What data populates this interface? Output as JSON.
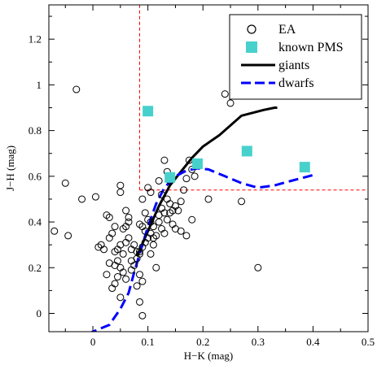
{
  "chart_data": {
    "type": "scatter",
    "title": "",
    "xlabel": "H−K (mag)",
    "ylabel": "J−H (mag)",
    "xlim": [
      -0.08,
      0.5
    ],
    "ylim": [
      -0.08,
      1.35
    ],
    "xticks": [
      0,
      0.1,
      0.2,
      0.3,
      0.4,
      0.5
    ],
    "xtick_labels": [
      "0",
      "0.1",
      "0.2",
      "0.3",
      "0.4",
      "0.5"
    ],
    "yticks": [
      0,
      0.2,
      0.4,
      0.6,
      0.8,
      1.0,
      1.2
    ],
    "ytick_labels": [
      "0",
      "0.2",
      "0.4",
      "0.6",
      "0.8",
      "1",
      "1.2"
    ],
    "grid": false,
    "legend_position": "top-right",
    "legend": [
      {
        "label": "EA",
        "marker": "open-circle"
      },
      {
        "label": "known PMS",
        "marker": "filled-square",
        "color": "#48d1cc"
      },
      {
        "label": "giants",
        "line": "solid",
        "color": "#000000"
      },
      {
        "label": "dwarfs",
        "line": "dashed",
        "color": "#0000ff"
      }
    ],
    "series": [
      {
        "name": "EA",
        "kind": "scatter",
        "marker": "open-circle",
        "points": [
          [
            -0.07,
            0.36
          ],
          [
            -0.05,
            0.57
          ],
          [
            -0.045,
            0.34
          ],
          [
            -0.03,
            0.98
          ],
          [
            -0.02,
            0.5
          ],
          [
            0.01,
            0.29
          ],
          [
            0.02,
            0.28
          ],
          [
            0.015,
            0.3
          ],
          [
            0.005,
            0.51
          ],
          [
            0.025,
            0.43
          ],
          [
            0.03,
            0.33
          ],
          [
            0.035,
            0.35
          ],
          [
            0.04,
            0.27
          ],
          [
            0.045,
            0.28
          ],
          [
            0.05,
            0.3
          ],
          [
            0.055,
            0.26
          ],
          [
            0.06,
            0.31
          ],
          [
            0.065,
            0.33
          ],
          [
            0.07,
            0.28
          ],
          [
            0.075,
            0.3
          ],
          [
            0.08,
            0.27
          ],
          [
            0.085,
            0.26
          ],
          [
            0.025,
            0.17
          ],
          [
            0.03,
            0.22
          ],
          [
            0.04,
            0.21
          ],
          [
            0.045,
            0.23
          ],
          [
            0.05,
            0.2
          ],
          [
            0.055,
            0.18
          ],
          [
            0.06,
            0.15
          ],
          [
            0.035,
            0.11
          ],
          [
            0.04,
            0.13
          ],
          [
            0.045,
            0.16
          ],
          [
            0.05,
            0.07
          ],
          [
            0.07,
            0.23
          ],
          [
            0.075,
            0.21
          ],
          [
            0.08,
            0.24
          ],
          [
            0.085,
            0.27
          ],
          [
            0.09,
            0.29
          ],
          [
            0.095,
            0.31
          ],
          [
            0.1,
            0.33
          ],
          [
            0.105,
            0.35
          ],
          [
            0.11,
            0.33
          ],
          [
            0.115,
            0.34
          ],
          [
            0.09,
            0.38
          ],
          [
            0.095,
            0.36
          ],
          [
            0.085,
            0.39
          ],
          [
            0.065,
            0.4
          ],
          [
            0.06,
            0.38
          ],
          [
            0.055,
            0.37
          ],
          [
            0.05,
            0.53
          ],
          [
            0.05,
            0.56
          ],
          [
            0.06,
            0.45
          ],
          [
            0.065,
            0.42
          ],
          [
            0.03,
            0.42
          ],
          [
            0.04,
            0.38
          ],
          [
            0.1,
            0.55
          ],
          [
            0.105,
            0.53
          ],
          [
            0.12,
            0.58
          ],
          [
            0.125,
            0.52
          ],
          [
            0.13,
            0.67
          ],
          [
            0.135,
            0.5
          ],
          [
            0.14,
            0.48
          ],
          [
            0.145,
            0.45
          ],
          [
            0.15,
            0.47
          ],
          [
            0.155,
            0.45
          ],
          [
            0.16,
            0.49
          ],
          [
            0.165,
            0.54
          ],
          [
            0.17,
            0.59
          ],
          [
            0.175,
            0.67
          ],
          [
            0.18,
            0.63
          ],
          [
            0.185,
            0.6
          ],
          [
            0.12,
            0.4
          ],
          [
            0.125,
            0.37
          ],
          [
            0.13,
            0.35
          ],
          [
            0.135,
            0.41
          ],
          [
            0.14,
            0.44
          ],
          [
            0.145,
            0.39
          ],
          [
            0.15,
            0.37
          ],
          [
            0.16,
            0.36
          ],
          [
            0.17,
            0.34
          ],
          [
            0.18,
            0.41
          ],
          [
            0.21,
            0.5
          ],
          [
            0.115,
            0.2
          ],
          [
            0.105,
            0.26
          ],
          [
            0.11,
            0.3
          ],
          [
            0.085,
            0.17
          ],
          [
            0.09,
            0.14
          ],
          [
            0.07,
            0.19
          ],
          [
            0.08,
            0.12
          ],
          [
            0.085,
            0.05
          ],
          [
            0.09,
            -0.01
          ],
          [
            0.12,
            0.43
          ],
          [
            0.13,
            0.44
          ],
          [
            0.125,
            0.46
          ],
          [
            0.09,
            0.5
          ],
          [
            0.095,
            0.44
          ],
          [
            0.1,
            0.41
          ],
          [
            0.105,
            0.4
          ],
          [
            0.11,
            0.38
          ],
          [
            0.24,
            0.96
          ],
          [
            0.25,
            0.92
          ],
          [
            0.27,
            0.49
          ],
          [
            0.3,
            0.2
          ],
          [
            0.135,
            0.62
          ],
          [
            0.14,
            0.58
          ]
        ]
      },
      {
        "name": "known PMS",
        "kind": "scatter",
        "marker": "filled-square",
        "color": "#48d1cc",
        "points": [
          [
            0.1,
            0.885
          ],
          [
            0.14,
            0.595
          ],
          [
            0.19,
            0.655
          ],
          [
            0.28,
            0.71
          ],
          [
            0.385,
            0.64
          ]
        ]
      },
      {
        "name": "giants",
        "kind": "line",
        "line": "solid",
        "color": "#000000",
        "points": [
          [
            0.08,
            0.25
          ],
          [
            0.1,
            0.36
          ],
          [
            0.12,
            0.47
          ],
          [
            0.14,
            0.56
          ],
          [
            0.16,
            0.62
          ],
          [
            0.18,
            0.68
          ],
          [
            0.2,
            0.73
          ],
          [
            0.23,
            0.78
          ],
          [
            0.27,
            0.865
          ],
          [
            0.31,
            0.89
          ],
          [
            0.33,
            0.9
          ],
          [
            0.335,
            0.9
          ]
        ]
      },
      {
        "name": "dwarfs",
        "kind": "line",
        "line": "dashed",
        "color": "#0000ff",
        "points": [
          [
            -0.01,
            -0.09
          ],
          [
            0.03,
            -0.05
          ],
          [
            0.05,
            0.02
          ],
          [
            0.065,
            0.09
          ],
          [
            0.075,
            0.18
          ],
          [
            0.085,
            0.26
          ],
          [
            0.1,
            0.38
          ],
          [
            0.115,
            0.48
          ],
          [
            0.13,
            0.55
          ],
          [
            0.15,
            0.6
          ],
          [
            0.17,
            0.625
          ],
          [
            0.19,
            0.635
          ],
          [
            0.21,
            0.63
          ],
          [
            0.24,
            0.6
          ],
          [
            0.27,
            0.57
          ],
          [
            0.3,
            0.55
          ],
          [
            0.33,
            0.56
          ],
          [
            0.36,
            0.58
          ],
          [
            0.4,
            0.605
          ]
        ]
      }
    ],
    "reference_lines": [
      {
        "orientation": "vertical",
        "x": 0.085,
        "y_range": [
          0.54,
          1.35
        ],
        "style": "dashed",
        "color": "#ff0000"
      },
      {
        "orientation": "horizontal",
        "y": 0.54,
        "x_range": [
          0.085,
          0.5
        ],
        "style": "dashed",
        "color": "#ff0000"
      }
    ]
  }
}
